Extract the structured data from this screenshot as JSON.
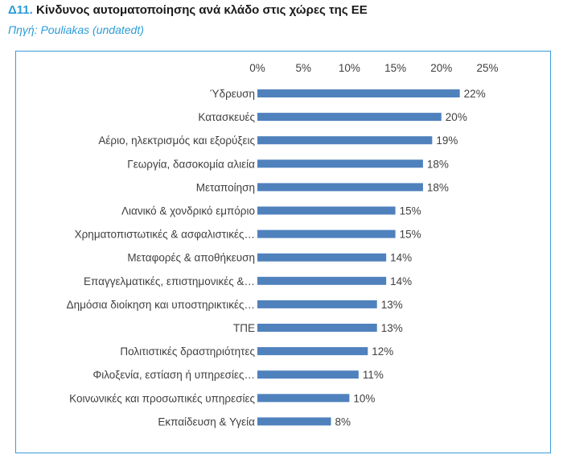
{
  "header": {
    "number": "Δ11.",
    "title": "Κίνδυνος αυτοματοποίησης ανά κλάδο στις χώρες της ΕΕ",
    "source": "Πηγή: Pouliakas (undatedt)"
  },
  "colors": {
    "bar": "#4f81bd",
    "accent": "#2b9cd8",
    "frame": "#3a9ad9",
    "text": "#404040"
  },
  "chart_data": {
    "type": "bar",
    "orientation": "horizontal",
    "title": "",
    "xlabel": "",
    "ylabel": "",
    "xlim": [
      0,
      25
    ],
    "x_ticks": [
      "0%",
      "5%",
      "10%",
      "15%",
      "20%",
      "25%"
    ],
    "x_axis_position": "top",
    "grid": false,
    "legend": "none",
    "categories": [
      "Ύδρευση",
      "Κατασκευές",
      "Αέριο, ηλεκτρισμός και εξορύξεις",
      "Γεωργία, δασοκομία αλιεία",
      "Μεταποίηση",
      "Λιανικό & χονδρικό εμπόριο",
      "Χρηματοπιστωτικές & ασφαλιστικές…",
      "Μεταφορές & αποθήκευση",
      "Επαγγελματικές, επιστημονικές &…",
      "Δημόσια διοίκηση και υποστηρικτικές…",
      "ΤΠΕ",
      "Πολιτιστικές δραστηριότητες",
      "Φιλοξενία, εστίαση ή υπηρεσίες…",
      "Κοινωνικές και προσωπικές υπηρεσίες",
      "Εκπαίδευση & Υγεία"
    ],
    "values": [
      22,
      20,
      19,
      18,
      18,
      15,
      15,
      14,
      14,
      13,
      13,
      12,
      11,
      10,
      8
    ],
    "value_labels": [
      "22%",
      "20%",
      "19%",
      "18%",
      "18%",
      "15%",
      "15%",
      "14%",
      "14%",
      "13%",
      "13%",
      "12%",
      "11%",
      "10%",
      "8%"
    ]
  }
}
